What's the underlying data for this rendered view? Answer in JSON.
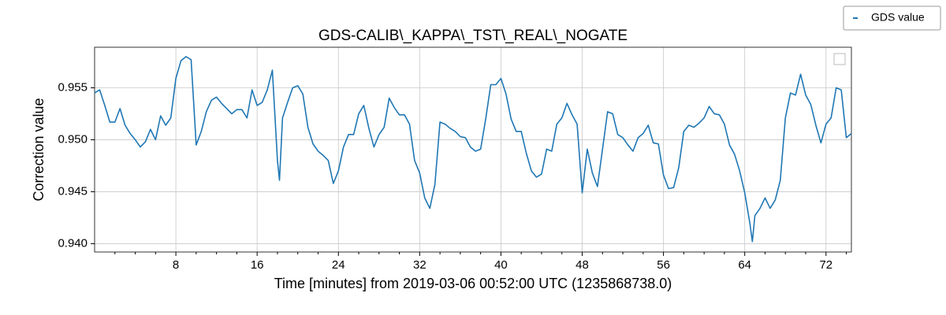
{
  "chart_data": {
    "type": "line",
    "title": "GDS-CALIB\\_KAPPA\\_TST\\_REAL\\_NOGATE",
    "xlabel": "Time [minutes] from 2019-03-06 00:52:00 UTC (1235868738.0)",
    "ylabel": "Correction value",
    "x": [
      0,
      0.5,
      1,
      1.5,
      2,
      2.5,
      3,
      3.5,
      4,
      4.5,
      5,
      5.5,
      6,
      6.5,
      7,
      7.5,
      8,
      8.5,
      9,
      9.5,
      10,
      10.5,
      11,
      11.5,
      12,
      12.5,
      13,
      13.5,
      14,
      14.5,
      15,
      15.5,
      16,
      16.5,
      17,
      17.5,
      18,
      18.2,
      18.5,
      19,
      19.5,
      20,
      20.5,
      21,
      21.5,
      22,
      22.5,
      23,
      23.5,
      24,
      24.5,
      25,
      25.5,
      26,
      26.5,
      27,
      27.5,
      28,
      28.5,
      29,
      29.5,
      30,
      30.5,
      31,
      31.5,
      32,
      32.5,
      33,
      33.5,
      34,
      34.5,
      35,
      35.5,
      36,
      36.5,
      37,
      37.5,
      38,
      38.5,
      39,
      39.5,
      40,
      40.5,
      41,
      41.5,
      42,
      42.5,
      43,
      43.5,
      44,
      44.5,
      45,
      45.5,
      46,
      46.5,
      47,
      47.5,
      48,
      48.5,
      49,
      49.5,
      50,
      50.5,
      51,
      51.5,
      52,
      52.5,
      53,
      53.5,
      54,
      54.5,
      55,
      55.5,
      56,
      56.5,
      57,
      57.5,
      58,
      58.5,
      59,
      59.5,
      60,
      60.5,
      61,
      61.5,
      62,
      62.5,
      63,
      63.5,
      64,
      64.5,
      64.75,
      65,
      65.5,
      66,
      66.5,
      67,
      67.5,
      68,
      68.5,
      69,
      69.5,
      70,
      70.5,
      71,
      71.5,
      72,
      72.5,
      73,
      73.5,
      74,
      74.5
    ],
    "series": [
      {
        "name": "GDS value",
        "color": "#1f77b4",
        "values": [
          0.9545,
          0.9548,
          0.9533,
          0.9517,
          0.9517,
          0.953,
          0.9514,
          0.9506,
          0.95,
          0.9493,
          0.9498,
          0.951,
          0.95,
          0.9523,
          0.9514,
          0.9521,
          0.9559,
          0.9576,
          0.958,
          0.9577,
          0.9495,
          0.9508,
          0.9527,
          0.9538,
          0.9541,
          0.9535,
          0.953,
          0.9525,
          0.9529,
          0.9529,
          0.9521,
          0.9548,
          0.9533,
          0.9536,
          0.9548,
          0.9567,
          0.948,
          0.9461,
          0.9521,
          0.9536,
          0.955,
          0.9552,
          0.9544,
          0.9512,
          0.9496,
          0.9489,
          0.9485,
          0.948,
          0.9458,
          0.947,
          0.9493,
          0.9505,
          0.9505,
          0.9525,
          0.9533,
          0.9511,
          0.9493,
          0.9505,
          0.9512,
          0.954,
          0.9531,
          0.9524,
          0.9524,
          0.9515,
          0.948,
          0.9468,
          0.9444,
          0.9434,
          0.9457,
          0.9517,
          0.9515,
          0.9511,
          0.9508,
          0.9503,
          0.9502,
          0.9493,
          0.9489,
          0.9491,
          0.952,
          0.9553,
          0.9553,
          0.9559,
          0.9544,
          0.952,
          0.9508,
          0.9508,
          0.9487,
          0.947,
          0.9464,
          0.9467,
          0.9491,
          0.9489,
          0.9515,
          0.9521,
          0.9535,
          0.9524,
          0.9515,
          0.9449,
          0.9491,
          0.9468,
          0.9455,
          0.9491,
          0.9527,
          0.9525,
          0.9505,
          0.9502,
          0.9495,
          0.9489,
          0.9502,
          0.9506,
          0.9514,
          0.9497,
          0.9496,
          0.9466,
          0.9453,
          0.9454,
          0.9473,
          0.9508,
          0.9514,
          0.9512,
          0.9516,
          0.9521,
          0.9532,
          0.9525,
          0.9524,
          0.9515,
          0.9495,
          0.9486,
          0.947,
          0.9449,
          0.942,
          0.9402,
          0.9427,
          0.9434,
          0.9444,
          0.9434,
          0.9442,
          0.9461,
          0.9521,
          0.9545,
          0.9543,
          0.9563,
          0.9543,
          0.9534,
          0.9514,
          0.9497,
          0.9515,
          0.9521,
          0.955,
          0.9548,
          0.9502,
          0.9506
        ]
      }
    ],
    "xlim": [
      0,
      74.5
    ],
    "ylim": [
      0.9392,
      0.9589
    ],
    "xticks": [
      8,
      16,
      24,
      32,
      40,
      48,
      56,
      64,
      72
    ],
    "xminorticks": [
      2,
      4,
      6,
      10,
      12,
      14,
      18,
      20,
      22,
      26,
      28,
      30,
      34,
      36,
      38,
      42,
      44,
      46,
      50,
      52,
      54,
      58,
      60,
      62,
      66,
      68,
      70,
      74
    ],
    "yticks": [
      {
        "value": 0.94,
        "label": "0.940"
      },
      0.945,
      {
        "value": 0.95,
        "label": "0.950"
      },
      0.955
    ],
    "grid": true,
    "legend": "upper right"
  }
}
